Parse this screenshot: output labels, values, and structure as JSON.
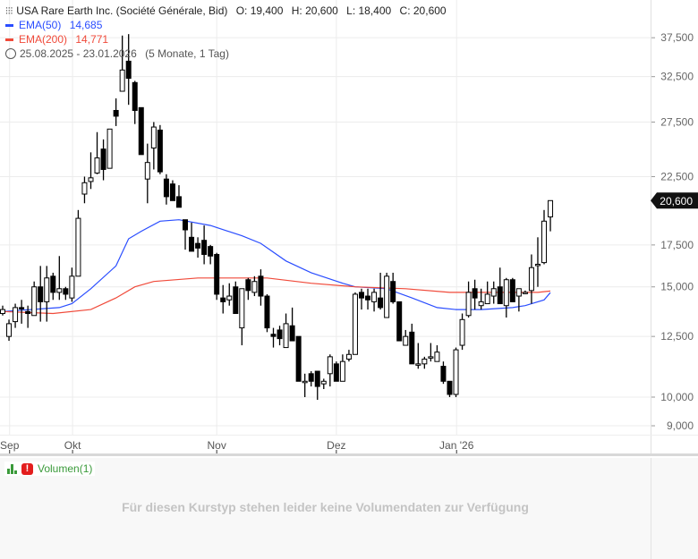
{
  "header": {
    "chart_type_icon": "candlestick-icon",
    "title": "USA Rare Earth Inc. (Société Générale, Bid)",
    "open": "O: 19,400",
    "high": "H: 20,600",
    "low": "L: 18,400",
    "close": "C: 20,600",
    "ema50_label": "EMA(50)",
    "ema50_value": "14,685",
    "ema200_label": "EMA(200)",
    "ema200_value": "14,771",
    "clock_icon": "clock-icon",
    "range": "25.08.2025 - 23.01.2026",
    "range_note": "(5 Monate, 1 Tag)"
  },
  "colors": {
    "ema50": "#2a4dff",
    "ema200": "#f04a3a",
    "candle": "#000000",
    "volume_label": "#3a9a3a",
    "warning": "#e31d1d"
  },
  "price_tag": "20,600",
  "chart_data": {
    "type": "candlestick",
    "scale": "log",
    "ylim": [
      8.6,
      40.5
    ],
    "grid": true,
    "y_ticks": [
      {
        "value": 37.5,
        "label": "37,500"
      },
      {
        "value": 32.5,
        "label": "32,500"
      },
      {
        "value": 27.5,
        "label": "27,500"
      },
      {
        "value": 22.5,
        "label": "22,500"
      },
      {
        "value": 17.5,
        "label": "17,500"
      },
      {
        "value": 15.0,
        "label": "15,000"
      },
      {
        "value": 12.5,
        "label": "12,500"
      },
      {
        "value": 10.0,
        "label": "10,000"
      },
      {
        "value": 9.0,
        "label": "9,000"
      }
    ],
    "x_ticks": [
      {
        "index": 1.1,
        "label": "Sep"
      },
      {
        "index": 11.1,
        "label": "Okt"
      },
      {
        "index": 34,
        "label": "Nov"
      },
      {
        "index": 53,
        "label": "Dez"
      },
      {
        "index": 72.1,
        "label": "Jan '26"
      }
    ],
    "ohlc": [
      [
        13.6,
        13.8,
        14.0,
        13.5
      ],
      [
        12.5,
        13.1,
        13.3,
        12.3
      ],
      [
        13.2,
        13.9,
        14.1,
        12.9
      ],
      [
        13.9,
        13.85,
        14.3,
        13.1
      ],
      [
        13.7,
        13.6,
        14.0,
        12.9
      ],
      [
        13.5,
        15.0,
        15.3,
        13.5
      ],
      [
        15.0,
        14.2,
        16.2,
        13.2
      ],
      [
        14.2,
        15.5,
        16.2,
        13.2
      ],
      [
        15.6,
        14.7,
        15.8,
        14.3
      ],
      [
        14.7,
        14.9,
        16.8,
        14.3
      ],
      [
        14.9,
        14.6,
        15.0,
        14.3
      ],
      [
        14.4,
        15.6,
        16.1,
        14.2
      ],
      [
        15.6,
        19.3,
        19.9,
        15.6
      ],
      [
        21.1,
        22.0,
        22.5,
        20.4
      ],
      [
        22.1,
        22.4,
        24.6,
        21.5
      ],
      [
        22.8,
        24.1,
        26.5,
        22.7
      ],
      [
        24.9,
        23.1,
        25.8,
        22.2
      ],
      [
        23.2,
        26.8,
        26.8,
        23.2
      ],
      [
        28.7,
        28.1,
        30.0,
        27.1
      ],
      [
        30.8,
        33.3,
        37.8,
        30.8
      ],
      [
        34.4,
        32.3,
        38.0,
        29.3
      ],
      [
        31.8,
        28.7,
        32.0,
        27.3
      ],
      [
        29.0,
        24.4,
        29.0,
        24.4
      ],
      [
        22.3,
        23.7,
        25.4,
        20.4
      ],
      [
        25.0,
        27.0,
        27.5,
        23.1
      ],
      [
        26.7,
        22.9,
        27.2,
        22.7
      ],
      [
        22.3,
        20.9,
        22.7,
        20.3
      ],
      [
        21.9,
        20.6,
        22.2,
        20.6
      ],
      [
        20.9,
        20.1,
        21.8,
        20.1
      ],
      [
        19.2,
        18.5,
        19.2,
        17.2
      ],
      [
        18.0,
        17.1,
        19.0,
        17.1
      ],
      [
        17.6,
        17.3,
        18.0,
        16.7
      ],
      [
        17.8,
        16.9,
        18.8,
        16.3
      ],
      [
        17.4,
        16.8,
        17.5,
        16.3
      ],
      [
        16.9,
        14.6,
        17.0,
        14.3
      ],
      [
        14.4,
        14.2,
        15.1,
        13.6
      ],
      [
        14.3,
        14.5,
        15.2,
        14.0
      ],
      [
        15.0,
        13.6,
        15.3,
        13.6
      ],
      [
        12.9,
        14.9,
        14.9,
        12.1
      ],
      [
        15.4,
        14.8,
        15.5,
        14.3
      ],
      [
        14.7,
        15.3,
        15.6,
        14.5
      ],
      [
        15.6,
        14.5,
        16.0,
        14.0
      ],
      [
        14.5,
        12.9,
        14.6,
        12.7
      ],
      [
        12.6,
        12.5,
        12.9,
        12.0
      ],
      [
        12.8,
        12.4,
        13.0,
        12.1
      ],
      [
        12.0,
        13.1,
        13.6,
        12.0
      ],
      [
        13.0,
        12.3,
        13.9,
        12.3
      ],
      [
        12.5,
        10.6,
        12.5,
        10.6
      ],
      [
        10.6,
        10.6,
        10.9,
        10.0
      ],
      [
        10.9,
        10.6,
        11.0,
        10.4
      ],
      [
        11.0,
        10.4,
        11.0,
        9.9
      ],
      [
        10.5,
        10.6,
        10.7,
        10.3
      ],
      [
        10.9,
        11.6,
        11.7,
        10.4
      ],
      [
        11.3,
        10.6,
        11.4,
        10.6
      ],
      [
        10.6,
        11.4,
        11.7,
        10.6
      ],
      [
        11.5,
        11.7,
        11.9,
        11.4
      ],
      [
        11.7,
        14.6,
        14.7,
        11.7
      ],
      [
        14.7,
        14.4,
        14.9,
        13.8
      ],
      [
        14.5,
        14.3,
        14.9,
        13.8
      ],
      [
        14.2,
        14.7,
        14.9,
        13.7
      ],
      [
        14.4,
        13.9,
        15.8,
        13.8
      ],
      [
        13.4,
        15.6,
        15.8,
        13.4
      ],
      [
        15.3,
        14.2,
        15.8,
        14.1
      ],
      [
        14.2,
        12.3,
        14.2,
        12.3
      ],
      [
        12.1,
        12.5,
        12.8,
        12.1
      ],
      [
        12.7,
        11.3,
        13.1,
        11.3
      ],
      [
        11.3,
        11.3,
        12.2,
        11.1
      ],
      [
        11.3,
        11.5,
        11.6,
        11.1
      ],
      [
        11.6,
        11.6,
        12.2,
        11.4
      ],
      [
        11.4,
        11.8,
        12.1,
        11.4
      ],
      [
        11.2,
        10.6,
        11.4,
        10.5
      ],
      [
        10.6,
        10.1,
        10.6,
        10.0
      ],
      [
        10.1,
        11.9,
        12.0,
        10.0
      ],
      [
        12.1,
        13.3,
        13.6,
        11.9
      ],
      [
        13.5,
        14.7,
        15.3,
        13.4
      ],
      [
        14.9,
        14.4,
        15.4,
        13.8
      ],
      [
        14.0,
        14.2,
        14.9,
        13.8
      ],
      [
        14.1,
        14.6,
        15.3,
        14.1
      ],
      [
        14.5,
        14.9,
        15.3,
        14.1
      ],
      [
        15.0,
        14.1,
        16.1,
        14.1
      ],
      [
        14.0,
        15.4,
        15.5,
        13.4
      ],
      [
        15.4,
        14.2,
        15.5,
        14.2
      ],
      [
        14.5,
        14.9,
        14.9,
        13.7
      ],
      [
        14.7,
        14.7,
        14.8,
        14.6
      ],
      [
        14.8,
        16.1,
        16.9,
        14.1
      ],
      [
        16.3,
        16.3,
        18.0,
        15.0
      ],
      [
        16.4,
        19.1,
        19.9,
        16.3
      ],
      [
        19.4,
        20.6,
        20.6,
        18.4
      ]
    ],
    "series": [
      {
        "name": "EMA(50)",
        "points": [
          [
            0,
            13.7
          ],
          [
            9,
            13.9
          ],
          [
            11,
            14.1
          ],
          [
            14,
            14.9
          ],
          [
            18,
            16.2
          ],
          [
            20,
            17.9
          ],
          [
            22,
            18.4
          ],
          [
            25,
            19.1
          ],
          [
            28,
            19.2
          ],
          [
            33,
            18.8
          ],
          [
            38,
            18.1
          ],
          [
            41,
            17.6
          ],
          [
            45,
            16.5
          ],
          [
            49,
            15.8
          ],
          [
            54,
            15.2
          ],
          [
            56,
            15.0
          ],
          [
            61,
            14.9
          ],
          [
            65,
            14.4
          ],
          [
            69,
            13.9
          ],
          [
            72,
            13.8
          ],
          [
            76,
            13.8
          ],
          [
            81,
            13.9
          ],
          [
            83,
            14.0
          ],
          [
            86,
            14.3
          ],
          [
            87,
            14.685
          ]
        ]
      },
      {
        "name": "EMA(200)",
        "points": [
          [
            0,
            13.7
          ],
          [
            8,
            13.6
          ],
          [
            14,
            13.8
          ],
          [
            18,
            14.4
          ],
          [
            21,
            15.0
          ],
          [
            24,
            15.3
          ],
          [
            31,
            15.5
          ],
          [
            37,
            15.5
          ],
          [
            42,
            15.5
          ],
          [
            49,
            15.2
          ],
          [
            56,
            15.0
          ],
          [
            64,
            14.9
          ],
          [
            71,
            14.7
          ],
          [
            76,
            14.7
          ],
          [
            85,
            14.7
          ],
          [
            87,
            14.771
          ]
        ]
      }
    ]
  },
  "volume": {
    "icon": "bar-chart-icon",
    "warning_icon": "warning-icon",
    "label": "Volumen(1)",
    "message": "Für diesen Kurstyp stehen leider keine Volumendaten zur Verfügung"
  }
}
